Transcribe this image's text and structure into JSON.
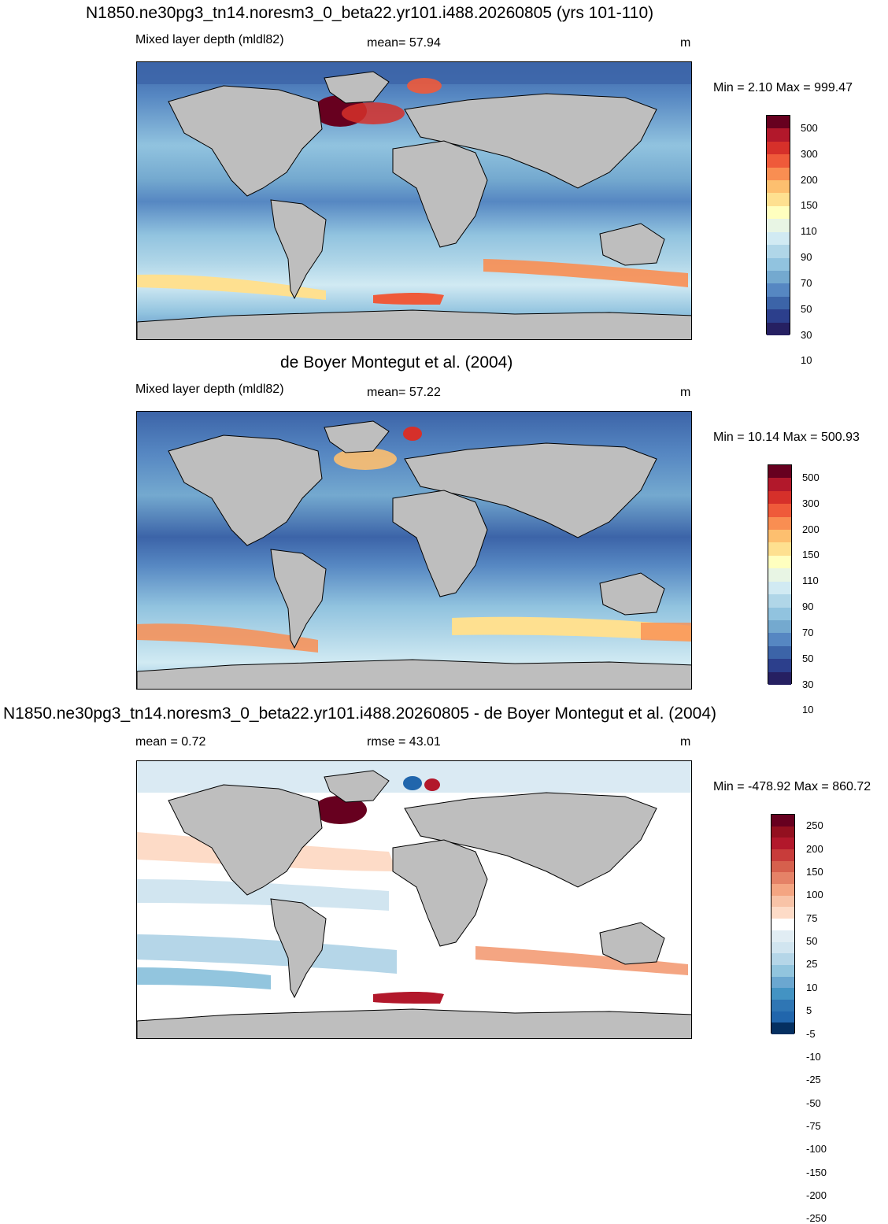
{
  "panels": [
    {
      "title": "N1850.ne30pg3_tn14.noresm3_0_beta22.yr101.i488.20260805 (yrs 101-110)",
      "left_label": "Mixed layer depth (mldl82)",
      "center_label": "mean=  57.94",
      "units": "m",
      "minmax": "Min =   2.10 Max = 999.47",
      "type": "model"
    },
    {
      "title": "de Boyer Montegut et al. (2004)",
      "left_label": "Mixed layer depth (mldl82)",
      "center_label": "mean=  57.22",
      "units": "m",
      "minmax": "Min =  10.14 Max = 500.93",
      "type": "obs"
    },
    {
      "title": "N1850.ne30pg3_tn14.noresm3_0_beta22.yr101.i488.20260805 - de Boyer Montegut et al. (2004)",
      "left_label": "mean =   0.72",
      "center_label": "rmse =  43.01",
      "units": "m",
      "minmax": "Min = -478.92 Max = 860.72",
      "type": "diff"
    }
  ],
  "colorbar_abs": {
    "labels": [
      "500",
      "300",
      "200",
      "150",
      "110",
      "90",
      "70",
      "50",
      "30",
      "10"
    ],
    "colors": [
      "#67001f",
      "#b2182b",
      "#d6302a",
      "#ef5a3a",
      "#f98e52",
      "#fdbf6f",
      "#fee090",
      "#ffffbf",
      "#e8f5e4",
      "#d1eaf3",
      "#b0d6e8",
      "#91c3df",
      "#74a9cf",
      "#5687c2",
      "#3c64a8",
      "#2c3f8c",
      "#262062"
    ]
  },
  "colorbar_diff": {
    "labels": [
      "250",
      "200",
      "150",
      "100",
      "75",
      "50",
      "25",
      "10",
      "5",
      "-5",
      "-10",
      "-25",
      "-50",
      "-75",
      "-100",
      "-150",
      "-200",
      "-250"
    ],
    "colors": [
      "#67001f",
      "#93101f",
      "#b2182b",
      "#c83c3a",
      "#d6604d",
      "#e58267",
      "#f4a582",
      "#f8c3a7",
      "#fddbc7",
      "#ffffff",
      "#e1edf4",
      "#d1e5f0",
      "#b5d6e8",
      "#92c5de",
      "#6ba7d0",
      "#4393c3",
      "#2f76b4",
      "#2166ac",
      "#053061"
    ]
  }
}
